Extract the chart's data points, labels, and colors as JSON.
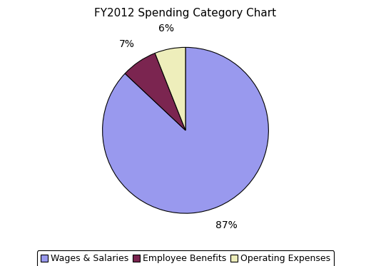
{
  "title": "FY2012 Spending Category Chart",
  "labels": [
    "Wages & Salaries",
    "Employee Benefits",
    "Operating Expenses"
  ],
  "values": [
    87,
    7,
    6
  ],
  "colors": [
    "#9999ee",
    "#7b2550",
    "#eeeebb"
  ],
  "pct_labels": [
    "87%",
    "7%",
    "6%"
  ],
  "legend_box_colors": [
    "#9999ee",
    "#7b2550",
    "#eeeebb"
  ],
  "background_color": "#ffffff",
  "title_fontsize": 11,
  "label_fontsize": 10,
  "legend_fontsize": 9,
  "startangle": 90
}
